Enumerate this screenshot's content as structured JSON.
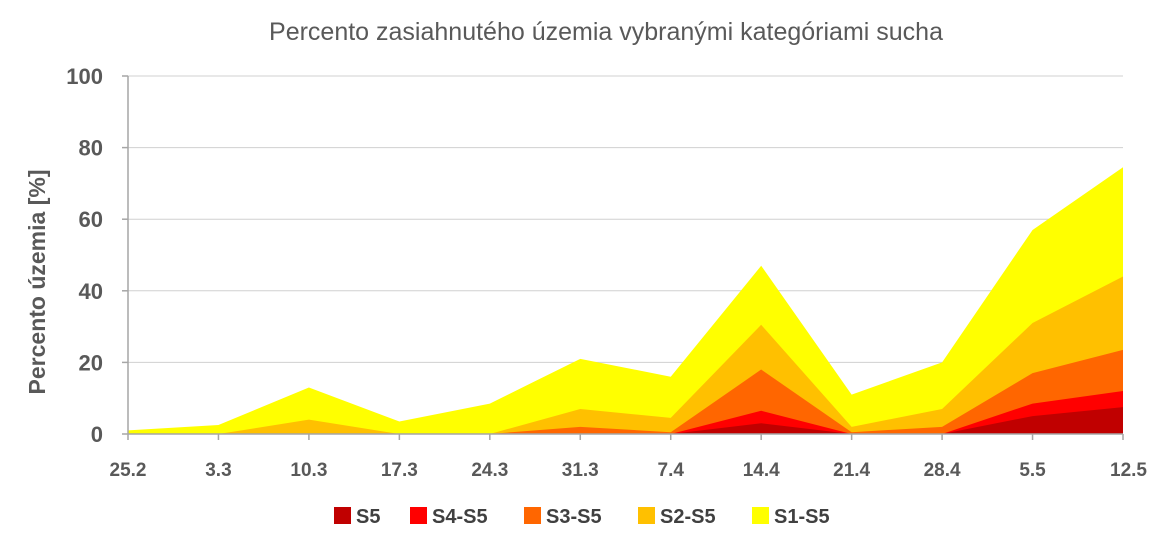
{
  "chart_data": {
    "type": "area",
    "title": "Percento zasiahnutého územia vybranými kategóriami sucha",
    "ylabel": "Percento územia  [%]",
    "xlabel": "",
    "ylim": [
      0,
      100
    ],
    "yticks": [
      "0",
      "20",
      "40",
      "60",
      "80",
      "100"
    ],
    "categories": [
      "25.2",
      "3.3",
      "10.3",
      "17.3",
      "24.3",
      "31.3",
      "7.4",
      "14.4",
      "21.4",
      "28.4",
      "5.5",
      "12.5"
    ],
    "grid": true,
    "legend_position": "bottom",
    "series": [
      {
        "name": "S1-S5",
        "color": "#FFFF00",
        "values": [
          1,
          2.5,
          13,
          3.5,
          8.5,
          21,
          16,
          47,
          11,
          20,
          57,
          74.5
        ]
      },
      {
        "name": "S2-S5",
        "color": "#FFC000",
        "values": [
          0,
          0,
          4,
          0,
          0,
          7,
          4.5,
          30.5,
          2,
          7,
          31,
          44
        ]
      },
      {
        "name": "S3-S5",
        "color": "#FF6600",
        "values": [
          0,
          0,
          0,
          0,
          0,
          2,
          0.5,
          18,
          0.5,
          2,
          17,
          23.5
        ]
      },
      {
        "name": "S4-S5",
        "color": "#FF0000",
        "values": [
          0,
          0,
          0,
          0,
          0,
          0,
          0,
          6.5,
          0,
          0,
          8.5,
          12
        ]
      },
      {
        "name": "S5",
        "color": "#C00000",
        "values": [
          0,
          0,
          0,
          0,
          0,
          0,
          0,
          3,
          0,
          0,
          5,
          7.5
        ]
      }
    ],
    "legend_order": [
      "S5",
      "S4-S5",
      "S3-S5",
      "S2-S5",
      "S1-S5"
    ]
  }
}
